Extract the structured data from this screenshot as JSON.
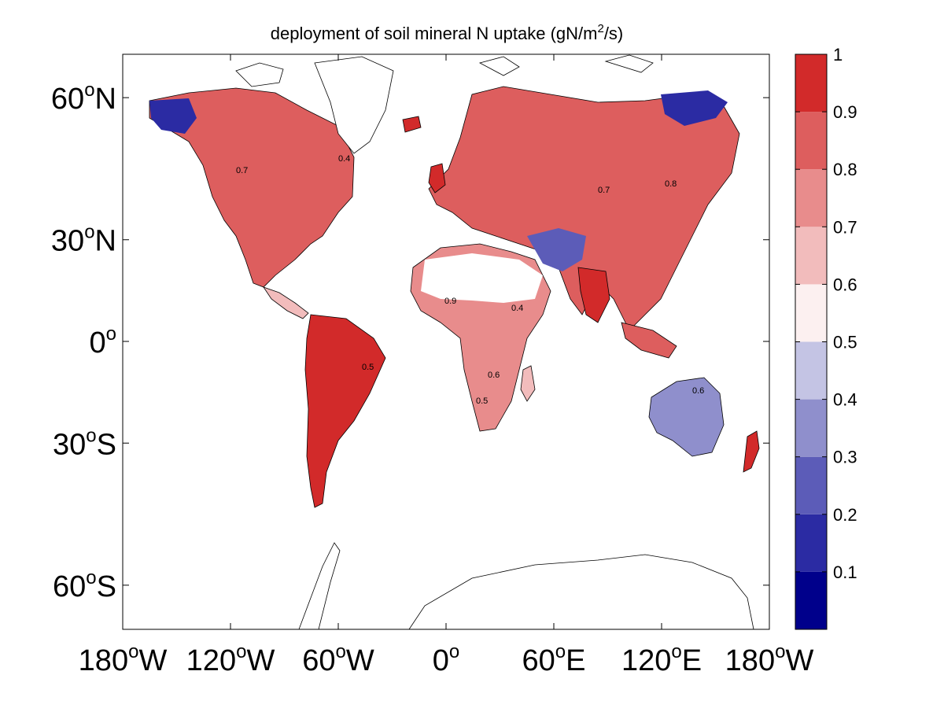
{
  "title": {
    "prefix": "deployment of soil mineral N uptake (gN/m",
    "sup": "2",
    "suffix": "/s)"
  },
  "chart_data": {
    "type": "heatmap",
    "projection": "mercator",
    "grid": false,
    "x_ticks": [
      {
        "lon": -180,
        "deg": "180",
        "hemi": "W"
      },
      {
        "lon": -120,
        "deg": "120",
        "hemi": "W"
      },
      {
        "lon": -60,
        "deg": "60",
        "hemi": "W"
      },
      {
        "lon": 0,
        "deg": "0",
        "hemi": ""
      },
      {
        "lon": 60,
        "deg": "60",
        "hemi": "E"
      },
      {
        "lon": 120,
        "deg": "120",
        "hemi": "E"
      },
      {
        "lon": 180,
        "deg": "180",
        "hemi": "W"
      }
    ],
    "y_ticks": [
      {
        "lat": 60,
        "deg": "60",
        "hemi": "N"
      },
      {
        "lat": 30,
        "deg": "30",
        "hemi": "N"
      },
      {
        "lat": 0,
        "deg": "0",
        "hemi": ""
      },
      {
        "lat": -30,
        "deg": "30",
        "hemi": "S"
      },
      {
        "lat": -60,
        "deg": "60",
        "hemi": "S"
      }
    ],
    "colorbar": {
      "min": 0,
      "max": 1,
      "colors": [
        "#00008b",
        "#2b2ba3",
        "#5c5cb8",
        "#8f8fcc",
        "#c4c4e4",
        "#fcf0f0",
        "#f2bcbc",
        "#e88c8c",
        "#dd5e5e",
        "#d22a2a"
      ],
      "tick_labels": [
        "0.1",
        "0.2",
        "0.3",
        "0.4",
        "0.5",
        "0.6",
        "0.7",
        "0.8",
        "0.9",
        "1"
      ]
    },
    "contour_labels": [
      "0.4",
      "0.5",
      "0.6",
      "0.7",
      "0.8",
      "0.9"
    ]
  },
  "icons": {
    "map": "world-map-icon"
  }
}
